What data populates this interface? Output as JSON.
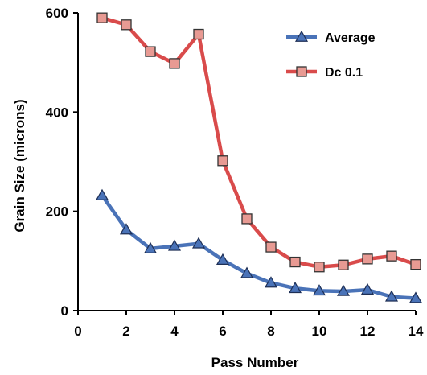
{
  "chart_data": {
    "type": "line",
    "xlabel": "Pass Number",
    "ylabel": "Grain Size (microns)",
    "xlim": [
      0,
      14
    ],
    "ylim": [
      0,
      600
    ],
    "xticks": [
      "0",
      "2",
      "4",
      "6",
      "8",
      "10",
      "12",
      "14"
    ],
    "yticks": [
      "0",
      "200",
      "400",
      "600"
    ],
    "grid": false,
    "legend_position": "top-right",
    "series": [
      {
        "name": "Average",
        "marker": "triangle",
        "color": "#4a73b8",
        "marker_fill": "#4a73b8",
        "x": [
          1,
          2,
          3,
          4,
          5,
          6,
          7,
          8,
          9,
          10,
          11,
          12,
          13,
          14
        ],
        "values": [
          232,
          163,
          125,
          130,
          135,
          102,
          75,
          56,
          45,
          40,
          39,
          42,
          28,
          25
        ]
      },
      {
        "name": "Dc 0.1",
        "marker": "square",
        "color": "#d94b4b",
        "marker_fill": "#e89a93",
        "x": [
          1,
          2,
          3,
          4,
          5,
          6,
          7,
          8,
          9,
          10,
          11,
          12,
          13,
          14
        ],
        "values": [
          590,
          576,
          522,
          498,
          557,
          302,
          185,
          128,
          98,
          88,
          92,
          104,
          110,
          93
        ]
      }
    ]
  }
}
